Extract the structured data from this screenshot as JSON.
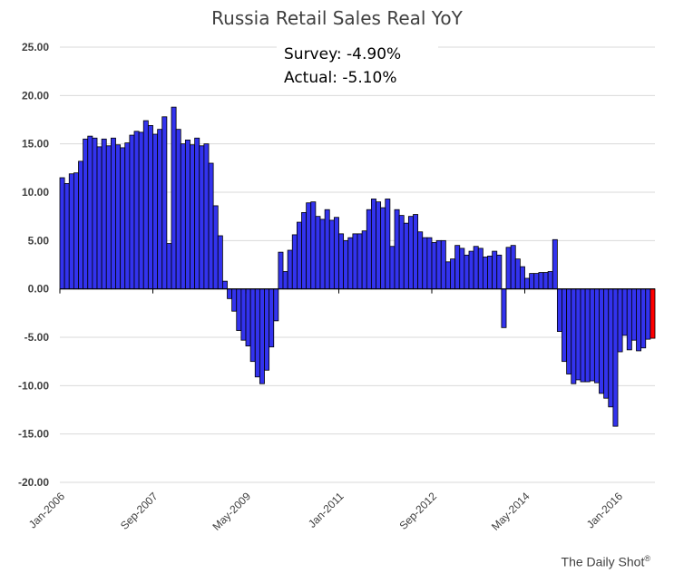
{
  "chart_data": {
    "type": "bar",
    "title": "Russia Retail Sales Real YoY",
    "annotations": {
      "survey": "Survey: -4.90%",
      "actual": "Actual:  -5.10%"
    },
    "source": "The Daily Shot",
    "source_mark": "®",
    "ylim": [
      -20,
      25
    ],
    "yticks": [
      "25.00",
      "20.00",
      "15.00",
      "10.00",
      "5.00",
      "0.00",
      "-5.00",
      "-10.00",
      "-15.00",
      "-20.00"
    ],
    "ytick_values": [
      25,
      20,
      15,
      10,
      5,
      0,
      -5,
      -10,
      -15,
      -20
    ],
    "xtick_labels": [
      "Jan-2006",
      "Sep-2007",
      "May-2009",
      "Jan-2011",
      "Sep-2012",
      "May-2014",
      "Jan-2016"
    ],
    "xtick_indices": [
      0,
      20,
      40,
      60,
      80,
      100,
      120
    ],
    "x_start": "Jan-2006",
    "frequency": "monthly",
    "colors": {
      "bar": "#3333ee",
      "latest": "#ff0000",
      "grid": "#d9d9d9"
    },
    "grid": true,
    "values": [
      11.5,
      10.9,
      11.9,
      12.0,
      13.2,
      15.5,
      15.8,
      15.6,
      14.7,
      15.5,
      14.8,
      15.6,
      14.9,
      14.6,
      15.1,
      15.9,
      16.3,
      16.2,
      17.4,
      16.9,
      16.0,
      16.5,
      17.8,
      4.7,
      18.8,
      16.5,
      15.0,
      15.4,
      14.9,
      15.6,
      14.8,
      15.0,
      13.0,
      8.6,
      5.5,
      0.8,
      -1.0,
      -2.3,
      -4.3,
      -5.3,
      -5.9,
      -7.5,
      -9.1,
      -9.8,
      -8.4,
      -6.0,
      -3.3,
      3.8,
      1.8,
      4.0,
      5.6,
      6.9,
      7.9,
      8.9,
      9.0,
      7.5,
      7.2,
      8.2,
      7.1,
      7.4,
      5.7,
      5.0,
      5.3,
      5.7,
      5.7,
      6.0,
      8.2,
      9.3,
      9.0,
      8.4,
      9.3,
      4.4,
      8.2,
      7.6,
      6.8,
      7.5,
      7.7,
      5.9,
      5.3,
      5.3,
      4.8,
      5.0,
      5.0,
      2.8,
      3.1,
      4.5,
      4.2,
      3.5,
      3.9,
      4.4,
      4.2,
      3.3,
      3.4,
      3.9,
      3.5,
      -4.0,
      4.3,
      4.5,
      3.1,
      2.3,
      1.1,
      1.6,
      1.6,
      1.7,
      1.7,
      1.8,
      5.1,
      -4.4,
      -7.5,
      -8.8,
      -9.8,
      -9.4,
      -9.6,
      -9.6,
      -9.5,
      -9.7,
      -10.8,
      -11.3,
      -12.2,
      -14.2,
      -6.5,
      -4.8,
      -6.3,
      -5.3,
      -6.4,
      -6.1,
      -5.2,
      -5.1
    ]
  }
}
